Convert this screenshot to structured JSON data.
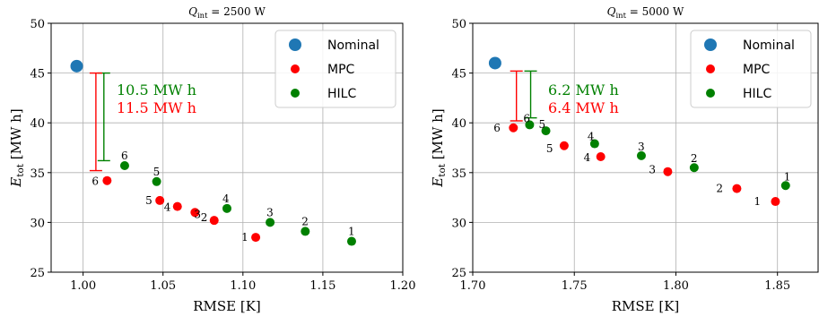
{
  "colors": {
    "nominal": "#1f77b4",
    "mpc": "#ff0000",
    "hilc": "#008000",
    "grid": "#b0b0b0"
  },
  "chart_data": [
    {
      "type": "scatter",
      "title": "Q_int = 2500 W",
      "title_parts": {
        "sym": "Q",
        "sub": "int",
        "rest": " = 2500 W"
      },
      "xlabel": "RMSE [K]",
      "ylabel": "E_tot [MW h]",
      "ylabel_parts": {
        "sym": "E",
        "sub": "tot",
        "rest": "[MW h]"
      },
      "xlim": [
        0.98,
        1.2
      ],
      "ylim": [
        25,
        50
      ],
      "xticks": [
        "1.00",
        "1.05",
        "1.10",
        "1.15",
        "1.20"
      ],
      "yticks": [
        "25",
        "30",
        "35",
        "40",
        "45",
        "50"
      ],
      "grid": true,
      "legend_position": "top-right",
      "series": [
        {
          "name": "Nominal",
          "color": "#1f77b4",
          "points": [
            {
              "x": 0.996,
              "y": 45.7,
              "label": ""
            }
          ]
        },
        {
          "name": "MPC",
          "color": "#ff0000",
          "points": [
            {
              "x": 1.108,
              "y": 28.5,
              "label": "1"
            },
            {
              "x": 1.082,
              "y": 30.2,
              "label": "2"
            },
            {
              "x": 1.07,
              "y": 31.0,
              "label": "3"
            },
            {
              "x": 1.059,
              "y": 31.6,
              "label": "4"
            },
            {
              "x": 1.048,
              "y": 32.2,
              "label": "5"
            },
            {
              "x": 1.015,
              "y": 34.2,
              "label": "6"
            }
          ]
        },
        {
          "name": "HILC",
          "color": "#008000",
          "points": [
            {
              "x": 1.168,
              "y": 28.1,
              "label": "1"
            },
            {
              "x": 1.139,
              "y": 29.1,
              "label": "2"
            },
            {
              "x": 1.117,
              "y": 30.0,
              "label": "3"
            },
            {
              "x": 1.09,
              "y": 31.4,
              "label": "4"
            },
            {
              "x": 1.046,
              "y": 34.1,
              "label": "5"
            },
            {
              "x": 1.026,
              "y": 35.7,
              "label": "6"
            }
          ]
        }
      ],
      "annotations": [
        {
          "text": "10.5 MW h",
          "color": "#008000",
          "bracket_x": 1.013,
          "y_top": 45.0,
          "y_bottom": 36.2
        },
        {
          "text": "11.5 MW h",
          "color": "#ff0000",
          "bracket_x": 1.008,
          "y_top": 45.0,
          "y_bottom": 35.2
        }
      ]
    },
    {
      "type": "scatter",
      "title": "Q_int = 5000 W",
      "title_parts": {
        "sym": "Q",
        "sub": "int",
        "rest": " = 5000 W"
      },
      "xlabel": "RMSE [K]",
      "ylabel": "E_tot [MW h]",
      "ylabel_parts": {
        "sym": "E",
        "sub": "tot",
        "rest": "[MW h]"
      },
      "xlim": [
        1.7,
        1.87
      ],
      "ylim": [
        25,
        50
      ],
      "xticks": [
        "1.70",
        "1.75",
        "1.80",
        "1.85"
      ],
      "yticks": [
        "25",
        "30",
        "35",
        "40",
        "45",
        "50"
      ],
      "grid": true,
      "legend_position": "top-right",
      "series": [
        {
          "name": "Nominal",
          "color": "#1f77b4",
          "points": [
            {
              "x": 1.711,
              "y": 46.0,
              "label": ""
            }
          ]
        },
        {
          "name": "MPC",
          "color": "#ff0000",
          "points": [
            {
              "x": 1.849,
              "y": 32.1,
              "label": "1"
            },
            {
              "x": 1.83,
              "y": 33.4,
              "label": "2"
            },
            {
              "x": 1.796,
              "y": 35.1,
              "label": "3"
            },
            {
              "x": 1.763,
              "y": 36.6,
              "label": "4"
            },
            {
              "x": 1.745,
              "y": 37.7,
              "label": "5"
            },
            {
              "x": 1.72,
              "y": 39.5,
              "label": "6"
            }
          ]
        },
        {
          "name": "HILC",
          "color": "#008000",
          "points": [
            {
              "x": 1.854,
              "y": 33.7,
              "label": "1"
            },
            {
              "x": 1.809,
              "y": 35.5,
              "label": "2"
            },
            {
              "x": 1.783,
              "y": 36.7,
              "label": "3"
            },
            {
              "x": 1.76,
              "y": 37.9,
              "label": "4"
            },
            {
              "x": 1.736,
              "y": 39.2,
              "label": "5"
            },
            {
              "x": 1.728,
              "y": 39.8,
              "label": "6"
            }
          ]
        }
      ],
      "annotations": [
        {
          "text": "6.2 MW h",
          "color": "#008000",
          "bracket_x": 1.7285,
          "y_top": 45.2,
          "y_bottom": 40.5
        },
        {
          "text": "6.4 MW h",
          "color": "#ff0000",
          "bracket_x": 1.7215,
          "y_top": 45.2,
          "y_bottom": 40.2
        }
      ]
    }
  ]
}
